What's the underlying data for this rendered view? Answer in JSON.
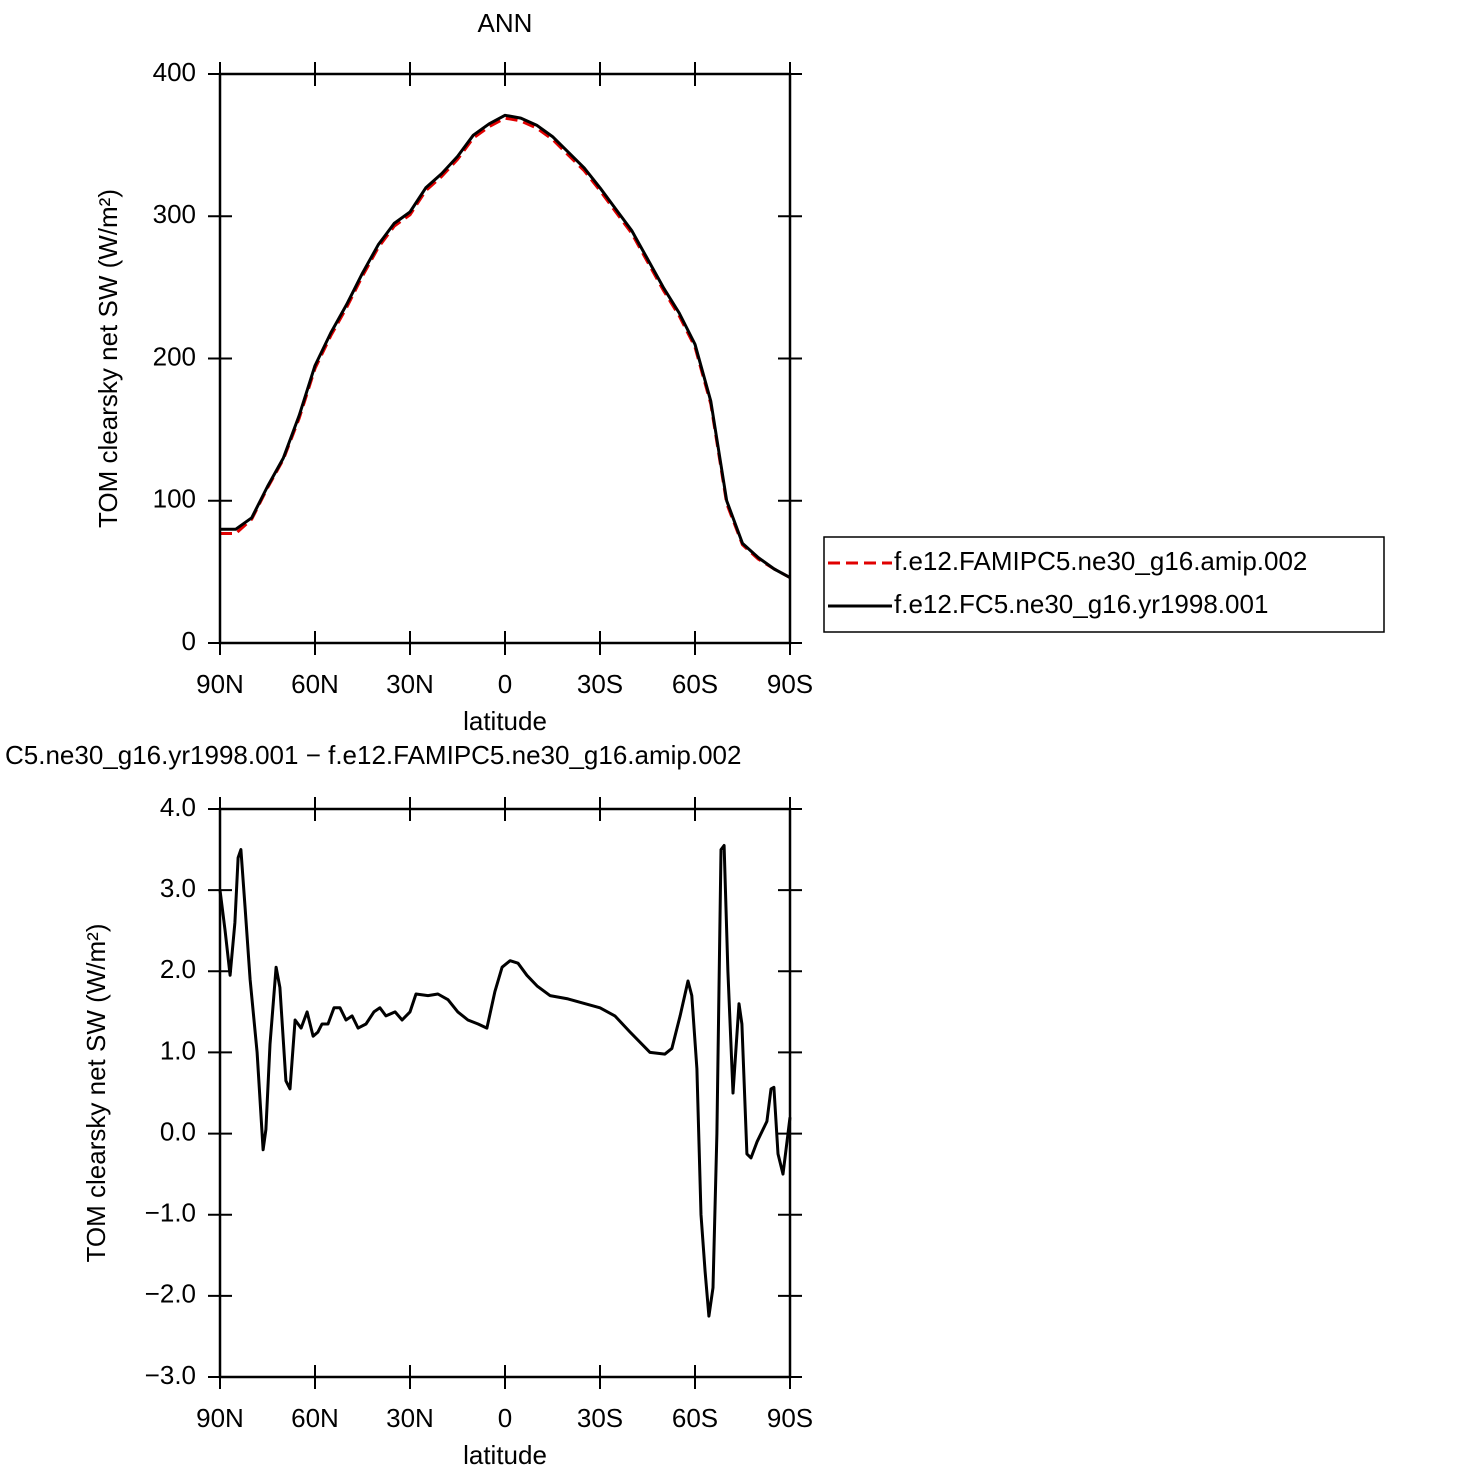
{
  "chart_data": [
    {
      "type": "line",
      "title": "ANN",
      "xlabel": "latitude",
      "ylabel": "TOM clearsky net SW (W/m²)",
      "x": [
        90,
        85,
        80,
        75,
        70,
        65,
        60,
        55,
        50,
        45,
        40,
        35,
        30,
        25,
        20,
        15,
        10,
        5,
        0,
        -5,
        -10,
        -15,
        -20,
        -25,
        -30,
        -35,
        -40,
        -45,
        -50,
        -55,
        -60,
        -65,
        -70,
        -75,
        -80,
        -85,
        -90
      ],
      "series": [
        {
          "name": "f.e12.FAMIPC5.ne30_g16.amip.002",
          "color": "#e00000",
          "style": "dashed",
          "values": [
            77,
            77,
            87,
            109,
            129,
            158,
            193,
            216,
            236,
            258,
            278,
            293,
            301,
            318,
            328,
            340,
            355,
            363,
            369,
            367,
            362,
            354,
            343,
            332,
            318,
            303,
            288,
            268,
            248,
            230,
            208,
            168,
            98,
            69,
            59,
            52,
            46
          ]
        },
        {
          "name": "f.e12.FC5.ne30_g16.yr1998.001",
          "color": "#000000",
          "style": "solid",
          "values": [
            80,
            80,
            88,
            110,
            130,
            160,
            195,
            218,
            238,
            260,
            280,
            295,
            303,
            320,
            330,
            342,
            357,
            365,
            371,
            369,
            364,
            356,
            345,
            334,
            320,
            305,
            290,
            270,
            250,
            232,
            210,
            170,
            100,
            70,
            60,
            52,
            46
          ]
        }
      ],
      "xlim": [
        90,
        -90
      ],
      "xticks": [
        {
          "value": 90,
          "label": "90N"
        },
        {
          "value": 60,
          "label": "60N"
        },
        {
          "value": 30,
          "label": "30N"
        },
        0,
        {
          "value": -30,
          "label": "30S"
        },
        {
          "value": -60,
          "label": "60S"
        },
        {
          "value": -90,
          "label": "90S"
        }
      ],
      "ylim": [
        0,
        400
      ],
      "yticks": [
        0,
        100,
        200,
        300,
        400
      ],
      "legend": "right"
    },
    {
      "type": "line",
      "title": "C5.ne30_g16.yr1998.001 − f.e12.FAMIPC5.ne30_g16.amip.002",
      "xlabel": "latitude",
      "ylabel": "TOM clearsky net SW (W/m²)",
      "x": [
        90,
        88.4,
        86.8,
        85.3,
        84.3,
        83.4,
        82.1,
        80.5,
        78.3,
        76.4,
        75.5,
        74.2,
        72.3,
        71.1,
        69.2,
        67.9,
        66.3,
        64.4,
        62.5,
        60.6,
        59.1,
        57.8,
        55.9,
        54,
        52.1,
        50.2,
        48.3,
        46.4,
        43.9,
        41.4,
        39.5,
        37.6,
        34.7,
        32.5,
        30,
        28.1,
        24.3,
        21.2,
        18,
        14.9,
        11.7,
        8.5,
        5.7,
        3.2,
        0.9,
        -1.6,
        -4.1,
        -6.9,
        -10.1,
        -14.2,
        -19.9,
        -25.3,
        -30,
        -34.7,
        -39.5,
        -45.8,
        -50.5,
        -52.7,
        -55.3,
        -57.8,
        -59,
        -60.6,
        -61.9,
        -63.2,
        -64.4,
        -65.7,
        -66.9,
        -68.2,
        -69.2,
        -70.4,
        -72,
        -73.9,
        -74.8,
        -76.4,
        -77.7,
        -79.6,
        -82.7,
        -84,
        -84.9,
        -86.2,
        -87.8,
        -90
      ],
      "values": [
        3.0,
        2.5,
        1.95,
        2.6,
        3.4,
        3.5,
        2.8,
        1.9,
        1.0,
        -0.2,
        0.05,
        1.1,
        2.05,
        1.8,
        0.65,
        0.55,
        1.4,
        1.3,
        1.5,
        1.2,
        1.25,
        1.35,
        1.35,
        1.55,
        1.55,
        1.4,
        1.45,
        1.3,
        1.35,
        1.5,
        1.55,
        1.45,
        1.5,
        1.4,
        1.5,
        1.72,
        1.7,
        1.72,
        1.65,
        1.5,
        1.4,
        1.35,
        1.3,
        1.75,
        2.05,
        2.13,
        2.1,
        1.95,
        1.82,
        1.7,
        1.66,
        1.6,
        1.55,
        1.45,
        1.25,
        1.0,
        0.98,
        1.05,
        1.45,
        1.88,
        1.7,
        0.8,
        -1.0,
        -1.7,
        -2.25,
        -1.9,
        0.0,
        3.5,
        3.55,
        2.0,
        0.5,
        1.6,
        1.35,
        -0.25,
        -0.3,
        -0.1,
        0.15,
        0.55,
        0.57,
        -0.25,
        -0.5,
        0.2
      ],
      "color": "#000000",
      "xlim": [
        90,
        -90
      ],
      "xticks": [
        {
          "value": 90,
          "label": "90N"
        },
        {
          "value": 60,
          "label": "60N"
        },
        {
          "value": 30,
          "label": "30N"
        },
        0,
        {
          "value": -30,
          "label": "30S"
        },
        {
          "value": -60,
          "label": "60S"
        },
        {
          "value": -90,
          "label": "90S"
        }
      ],
      "ylim": [
        -3,
        4
      ],
      "yticks": [
        {
          "value": -3,
          "label": "−3.0"
        },
        {
          "value": -2,
          "label": "−2.0"
        },
        {
          "value": -1,
          "label": "−1.0"
        },
        {
          "value": 0,
          "label": "0.0"
        },
        {
          "value": 1,
          "label": "1.0"
        },
        {
          "value": 2,
          "label": "2.0"
        },
        {
          "value": 3,
          "label": "3.0"
        },
        {
          "value": 4,
          "label": "4.0"
        }
      ]
    }
  ]
}
